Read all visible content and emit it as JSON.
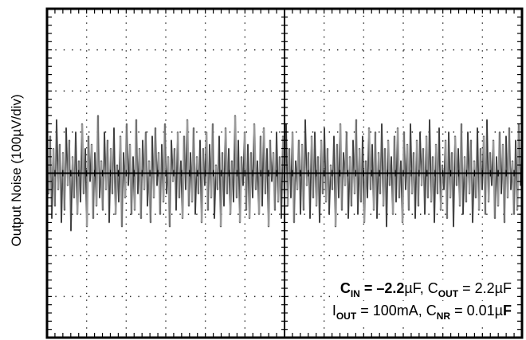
{
  "chart_data": {
    "type": "line",
    "ylabel": "Output Noise (100µV/div)",
    "y_units_per_div": "100µV",
    "grid": "dotted, 12 x 8 divisions",
    "legend": "none",
    "annotation": {
      "line1": [
        {
          "text": "C",
          "style": "b"
        },
        {
          "text": "IN",
          "style": "sub"
        },
        {
          "text": " = –2.2",
          "style": "b"
        },
        {
          "text": "µF, C",
          "style": ""
        },
        {
          "text": "OUT",
          "style": "sub"
        },
        {
          "text": " = 2.2µF",
          "style": ""
        }
      ],
      "line2": [
        {
          "text": "I",
          "style": ""
        },
        {
          "text": "OUT",
          "style": "sub"
        },
        {
          "text": " = 100mA, C",
          "style": ""
        },
        {
          "text": "NR",
          "style": "sub"
        },
        {
          "text": " = 0.01µ",
          "style": ""
        },
        {
          "text": "F",
          "style": "b"
        }
      ]
    },
    "series": [
      {
        "values": [
          0.2,
          -0.5,
          0.9,
          -1.1,
          0.6,
          -0.8,
          1.3,
          -0.4,
          0.7,
          -1.2,
          0.5,
          -0.9,
          1.1,
          -0.3,
          0.8,
          -1.4,
          0.4,
          -0.6,
          1.0,
          -1.0,
          0.3,
          -0.7,
          1.2,
          -0.5,
          0.6,
          -1.3,
          0.9,
          -0.2,
          0.7,
          -1.1,
          0.5,
          -0.8,
          1.4,
          -0.6,
          0.3,
          -0.9,
          1.0,
          -0.4,
          0.8,
          -1.2,
          0.6,
          -0.5,
          1.1,
          -1.0,
          0.2,
          -0.7,
          0.9,
          -1.3,
          0.5,
          -0.6,
          1.2,
          -0.3,
          0.7,
          -1.0,
          0.4,
          -0.9,
          1.3,
          -0.5,
          0.6,
          -1.1,
          0.8,
          -0.4,
          1.0,
          -0.8,
          0.3,
          -1.2,
          0.9,
          -0.6,
          1.1,
          -0.3,
          0.5,
          -1.0,
          0.7,
          -0.7,
          1.2,
          -0.5,
          0.4,
          -1.3,
          0.8,
          -0.2,
          0.6,
          -0.9,
          1.0,
          -0.6,
          0.3,
          -1.1,
          0.9,
          -0.4,
          1.3,
          -0.8,
          0.5,
          -0.7,
          1.1,
          -1.0,
          0.4,
          -0.5,
          0.8,
          -1.2,
          0.6,
          -0.3,
          1.0,
          -0.9,
          0.7,
          -0.6,
          1.2,
          -1.1,
          0.2,
          -0.4,
          0.9,
          -1.3,
          0.5,
          -0.8,
          1.1,
          -0.5,
          0.6,
          -1.0,
          0.3,
          -0.7,
          1.4,
          -0.6,
          0.8,
          -1.2,
          0.4,
          -0.3,
          1.0,
          -0.9,
          0.7,
          -1.1,
          0.5,
          -0.6,
          1.2,
          -0.4,
          0.3,
          -1.0,
          0.9,
          -0.8,
          1.1,
          -0.5,
          0.6,
          -1.3,
          0.8,
          -0.2,
          0.5,
          -0.9,
          1.0,
          -0.7,
          0.4,
          -1.1,
          0.9,
          -0.5,
          1.2,
          -0.8,
          0.6,
          -0.6,
          1.0,
          -1.2,
          0.3,
          -0.4,
          0.8,
          -1.0,
          0.7,
          -0.9,
          1.3,
          -0.3,
          0.5,
          -1.1,
          0.9,
          -0.6,
          1.0,
          -0.8,
          0.4,
          -1.2,
          0.8,
          -0.5,
          1.1,
          -0.7,
          0.6,
          -1.0,
          0.2,
          -0.4,
          0.9,
          -1.3,
          0.7,
          -0.6,
          1.2,
          -0.9,
          0.5,
          -0.3,
          1.0,
          -1.1,
          0.4,
          -0.8,
          0.8,
          -0.5,
          1.3,
          -1.0,
          0.6,
          -0.7,
          0.9,
          -1.2,
          0.3,
          -0.6,
          1.1,
          -0.4,
          0.7,
          -0.9,
          1.0,
          -1.1,
          0.5,
          -0.5,
          1.2,
          -0.8,
          0.6,
          -1.3,
          0.8,
          -0.3,
          0.4,
          -1.0,
          0.9,
          -0.7,
          1.1,
          -0.6,
          0.3,
          -1.2,
          1.0,
          -0.4,
          0.7,
          -0.9,
          1.2,
          -0.5,
          0.5,
          -1.1,
          0.8,
          -0.8,
          1.0,
          -0.3,
          0.6,
          -1.0,
          0.9,
          -0.6,
          1.3,
          -0.7,
          0.4,
          -1.2,
          0.7,
          -0.5,
          1.1,
          -0.9,
          0.2,
          -0.4,
          0.8,
          -1.1,
          1.0,
          -0.6,
          0.5,
          -1.3,
          0.9,
          -0.3,
          0.6,
          -0.8,
          1.2,
          -1.0,
          0.4,
          -0.7,
          1.0,
          -0.5,
          0.8,
          -1.2,
          0.3,
          -0.6,
          1.1,
          -0.9,
          0.6,
          -0.4,
          0.9,
          -1.0,
          1.3,
          -0.7,
          0.5,
          -0.3,
          0.8,
          -1.1,
          0.4,
          -0.8,
          1.0,
          -0.5,
          0.7,
          -1.2,
          0.9,
          -0.6,
          1.1,
          -0.4,
          0.3,
          -1.0,
          0.8,
          -0.9,
          1.2,
          -0.3,
          0.5
        ]
      }
    ]
  }
}
